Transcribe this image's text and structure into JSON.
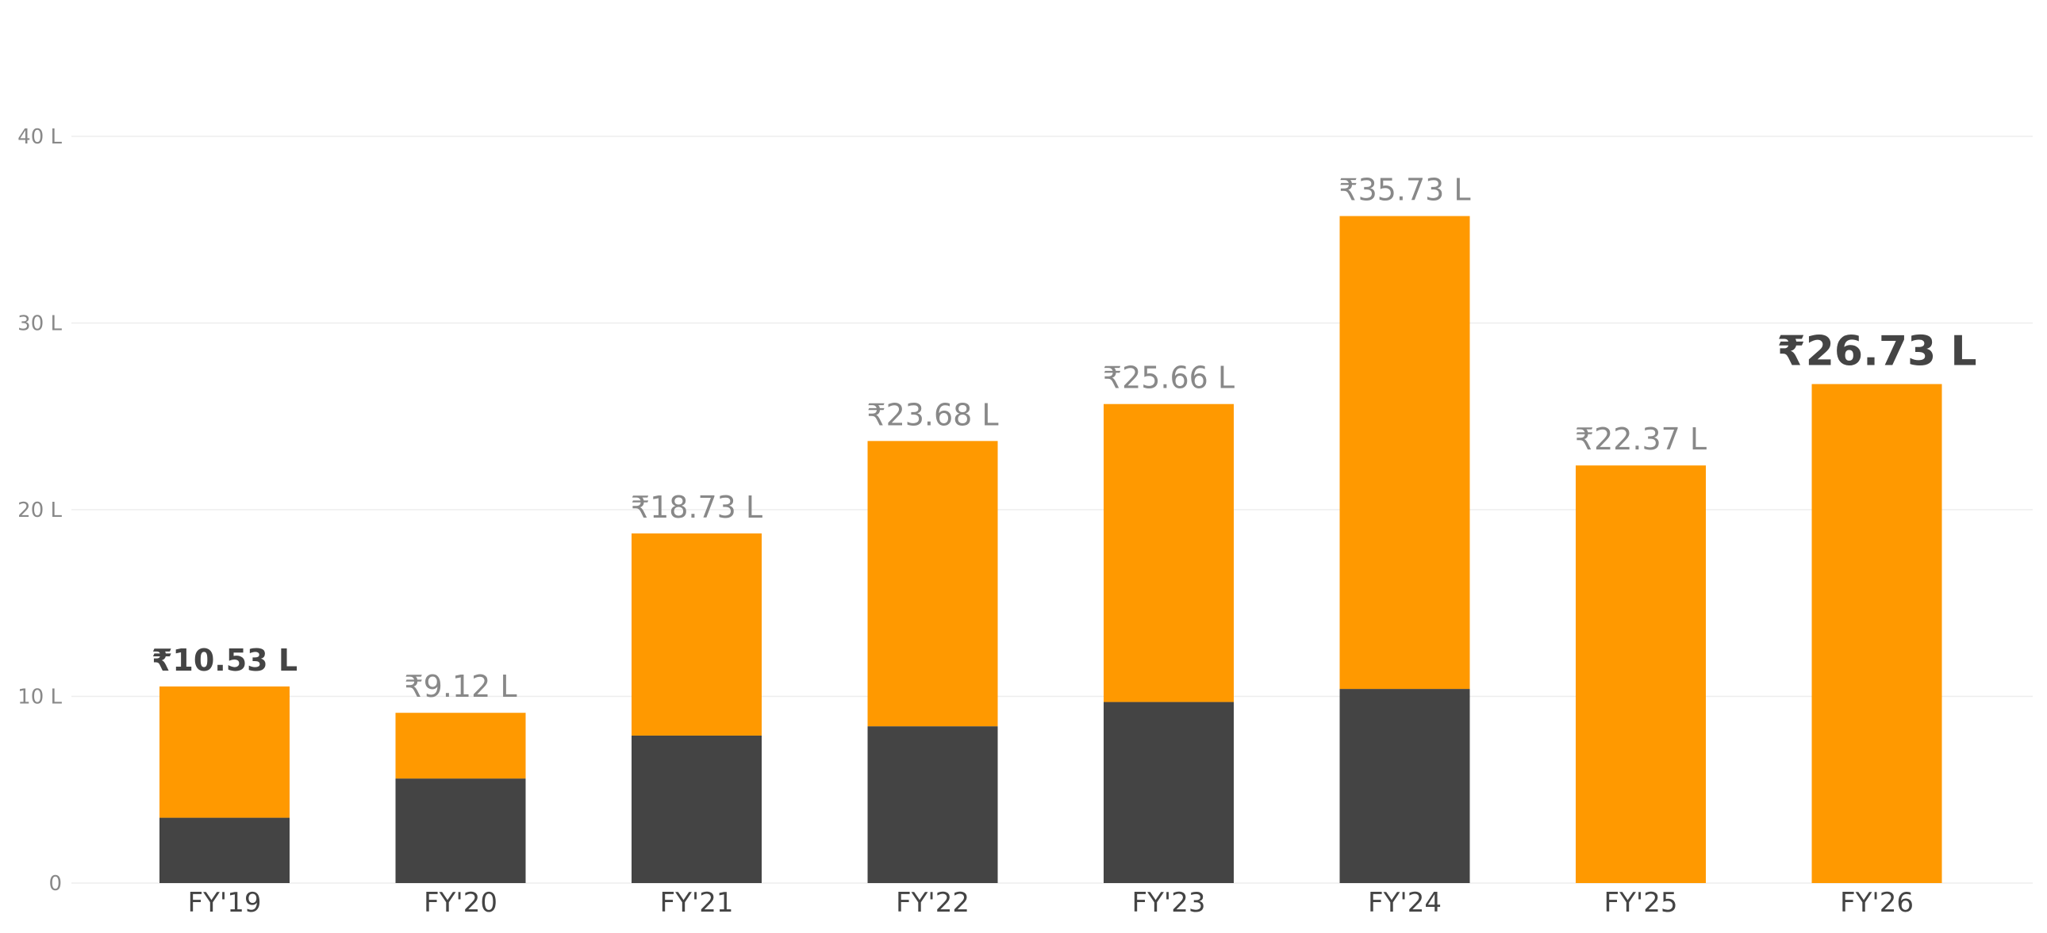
{
  "chart_data": {
    "type": "bar",
    "stacked": true,
    "categories": [
      "FY'19",
      "FY'20",
      "FY'21",
      "FY'22",
      "FY'23",
      "FY'24",
      "FY'25",
      "FY'26"
    ],
    "series": [
      {
        "color": "#444444",
        "values": [
          3.5,
          5.6,
          7.9,
          8.4,
          9.7,
          10.4,
          0,
          0
        ]
      },
      {
        "color": "#FF9900",
        "values": [
          7.03,
          3.52,
          10.83,
          15.28,
          15.96,
          25.33,
          22.37,
          26.73
        ]
      }
    ],
    "totals": [
      10.53,
      9.12,
      18.73,
      23.68,
      25.66,
      35.73,
      22.37,
      26.73
    ],
    "data_labels": [
      "₹10.53 L",
      "₹9.12 L",
      "₹18.73 L",
      "₹23.68 L",
      "₹25.66 L",
      "₹35.73 L",
      "₹22.37 L",
      "₹26.73 L"
    ],
    "highlighted": [
      "FY'19",
      "FY'26"
    ],
    "yticks": [
      0,
      10,
      20,
      30,
      40
    ],
    "ytick_labels": [
      "0",
      "10 L",
      "20 L",
      "30 L",
      "40 L"
    ],
    "ylim": [
      0,
      40
    ],
    "grid": true,
    "legend": "none"
  }
}
